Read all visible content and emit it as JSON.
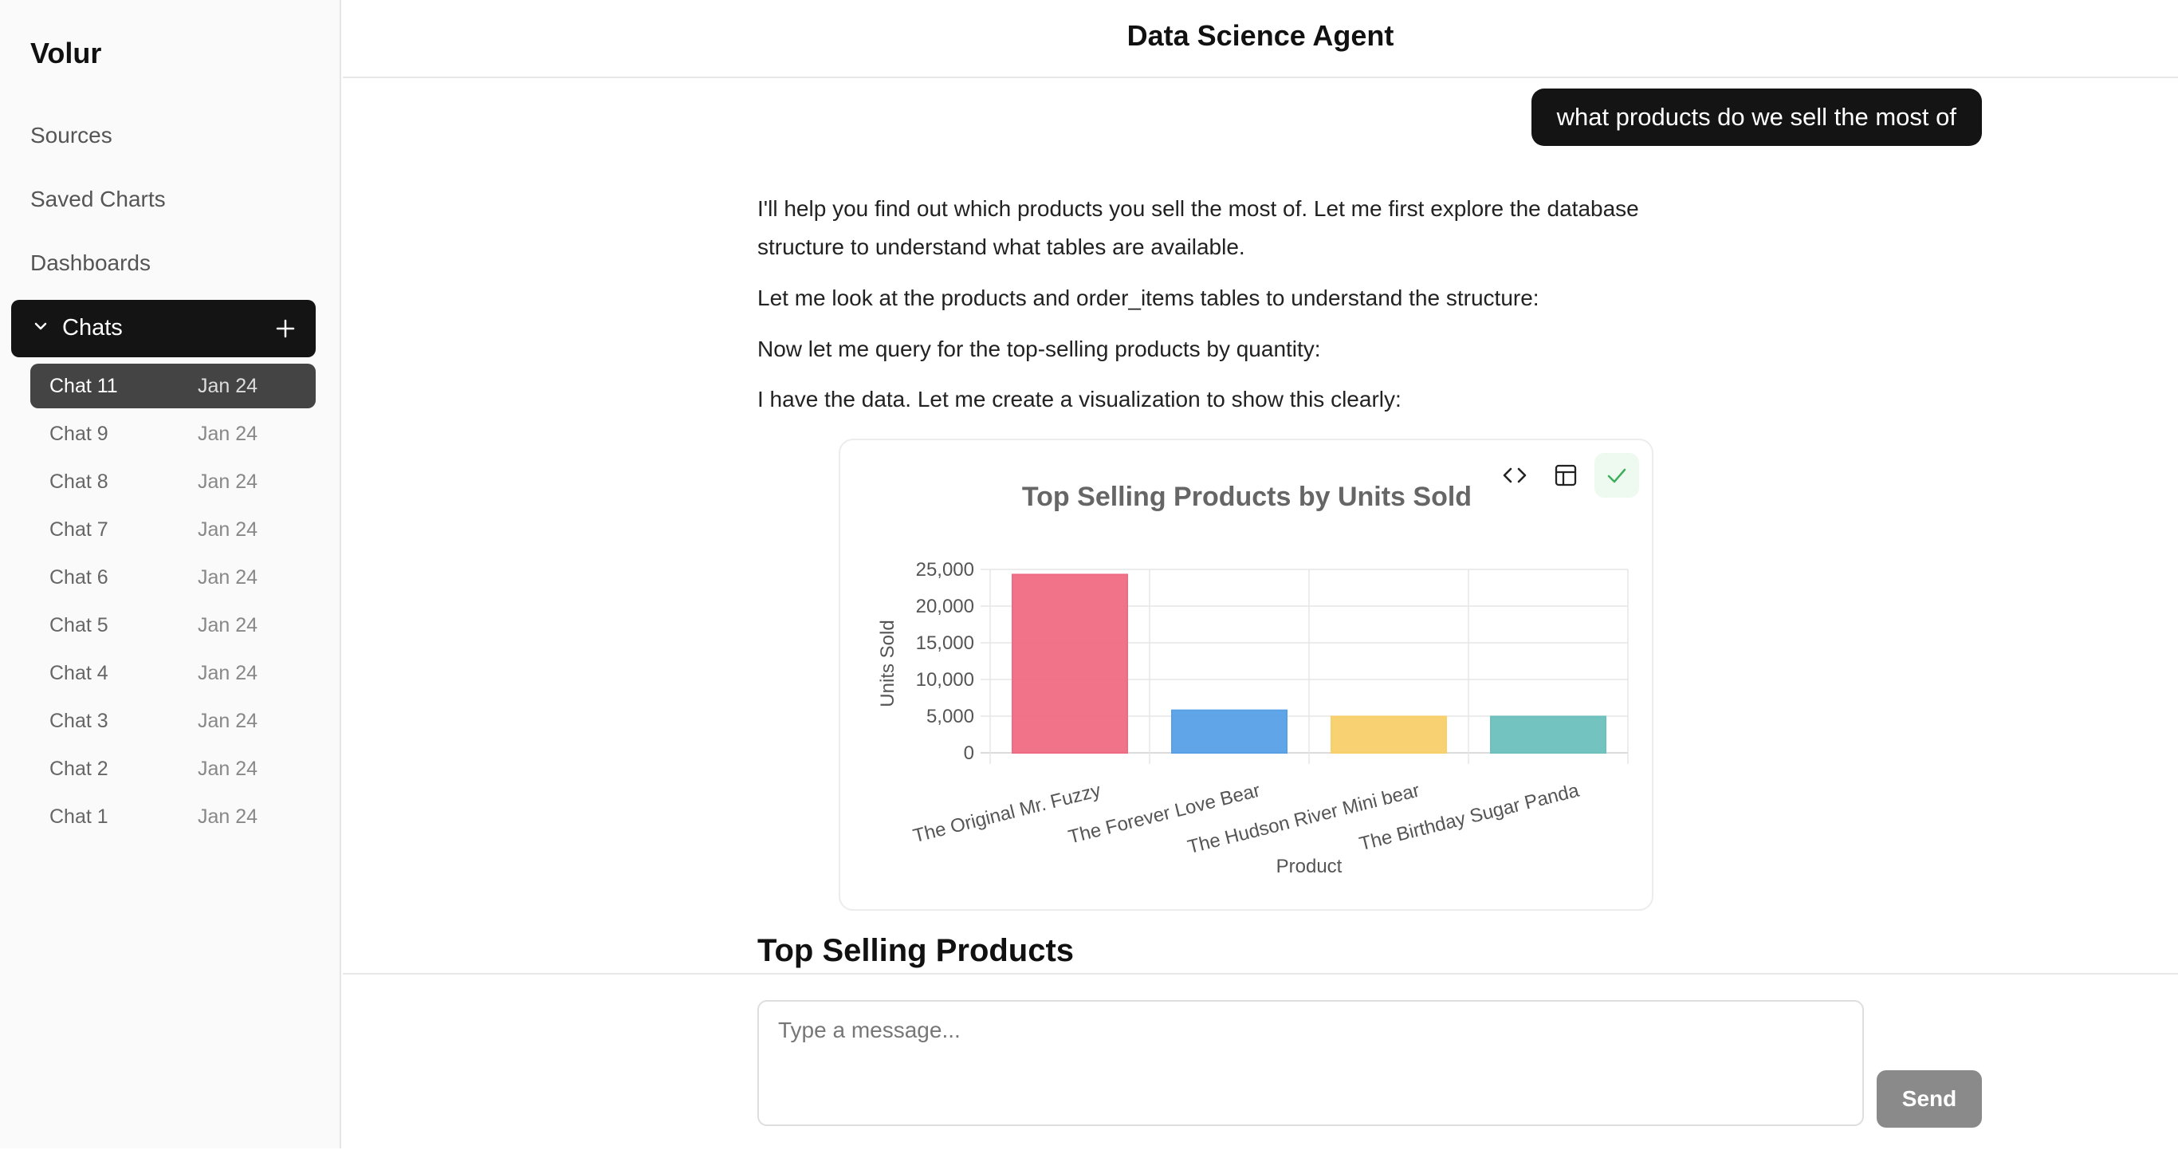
{
  "sidebar": {
    "brand": "Volur",
    "nav": [
      {
        "label": "Sources",
        "icon": "none"
      },
      {
        "label": "Saved Charts",
        "icon": "none"
      },
      {
        "label": "Dashboards",
        "icon": "none"
      }
    ],
    "chats": {
      "label": "Chats",
      "expand_icon": "chevron-down-icon",
      "add_icon": "plus-icon",
      "items": [
        {
          "name": "Chat 11",
          "date": "Jan 24",
          "active": true
        },
        {
          "name": "Chat 9",
          "date": "Jan 24"
        },
        {
          "name": "Chat 8",
          "date": "Jan 24"
        },
        {
          "name": "Chat 7",
          "date": "Jan 24"
        },
        {
          "name": "Chat 6",
          "date": "Jan 24"
        },
        {
          "name": "Chat 5",
          "date": "Jan 24"
        },
        {
          "name": "Chat 4",
          "date": "Jan 24"
        },
        {
          "name": "Chat 3",
          "date": "Jan 24"
        },
        {
          "name": "Chat 2",
          "date": "Jan 24"
        },
        {
          "name": "Chat 1",
          "date": "Jan 24"
        }
      ]
    }
  },
  "header": {
    "title": "Data Science Agent"
  },
  "conversation": {
    "user_message": "what products do we sell the most of",
    "assistant_messages": [
      "I'll help you find out which products you sell the most of. Let me first explore the database structure to understand what tables are available.",
      "Let me look at the products and order_items tables to understand the structure:",
      "Now let me query for the top-selling products by quantity:",
      "I have the data. Let me create a visualization to show this clearly:"
    ],
    "chart_tools": [
      {
        "name": "code-icon"
      },
      {
        "name": "table-icon"
      },
      {
        "name": "check-icon",
        "color": "#3fae5c"
      }
    ],
    "section_title": "Top Selling Products"
  },
  "chart_data": {
    "type": "bar",
    "title": "Top Selling Products by Units Sold",
    "xlabel": "Product",
    "ylabel": "Units Sold",
    "categories": [
      "The Original Mr. Fuzzy",
      "The Forever Love Bear",
      "The Hudson River Mini bear",
      "The Birthday Sugar Panda"
    ],
    "values": [
      24300,
      5800,
      4950,
      4950
    ],
    "colors": [
      "#ef6b84",
      "#57a0e6",
      "#f8d06a",
      "#6cc0be"
    ],
    "yticks": [
      "0",
      "5,000",
      "10,000",
      "15,000",
      "20,000",
      "25,000"
    ],
    "ylim": [
      0,
      25000
    ],
    "grid": true,
    "legend": "none"
  },
  "composer": {
    "placeholder": "Type a message...",
    "send_label": "Send"
  }
}
